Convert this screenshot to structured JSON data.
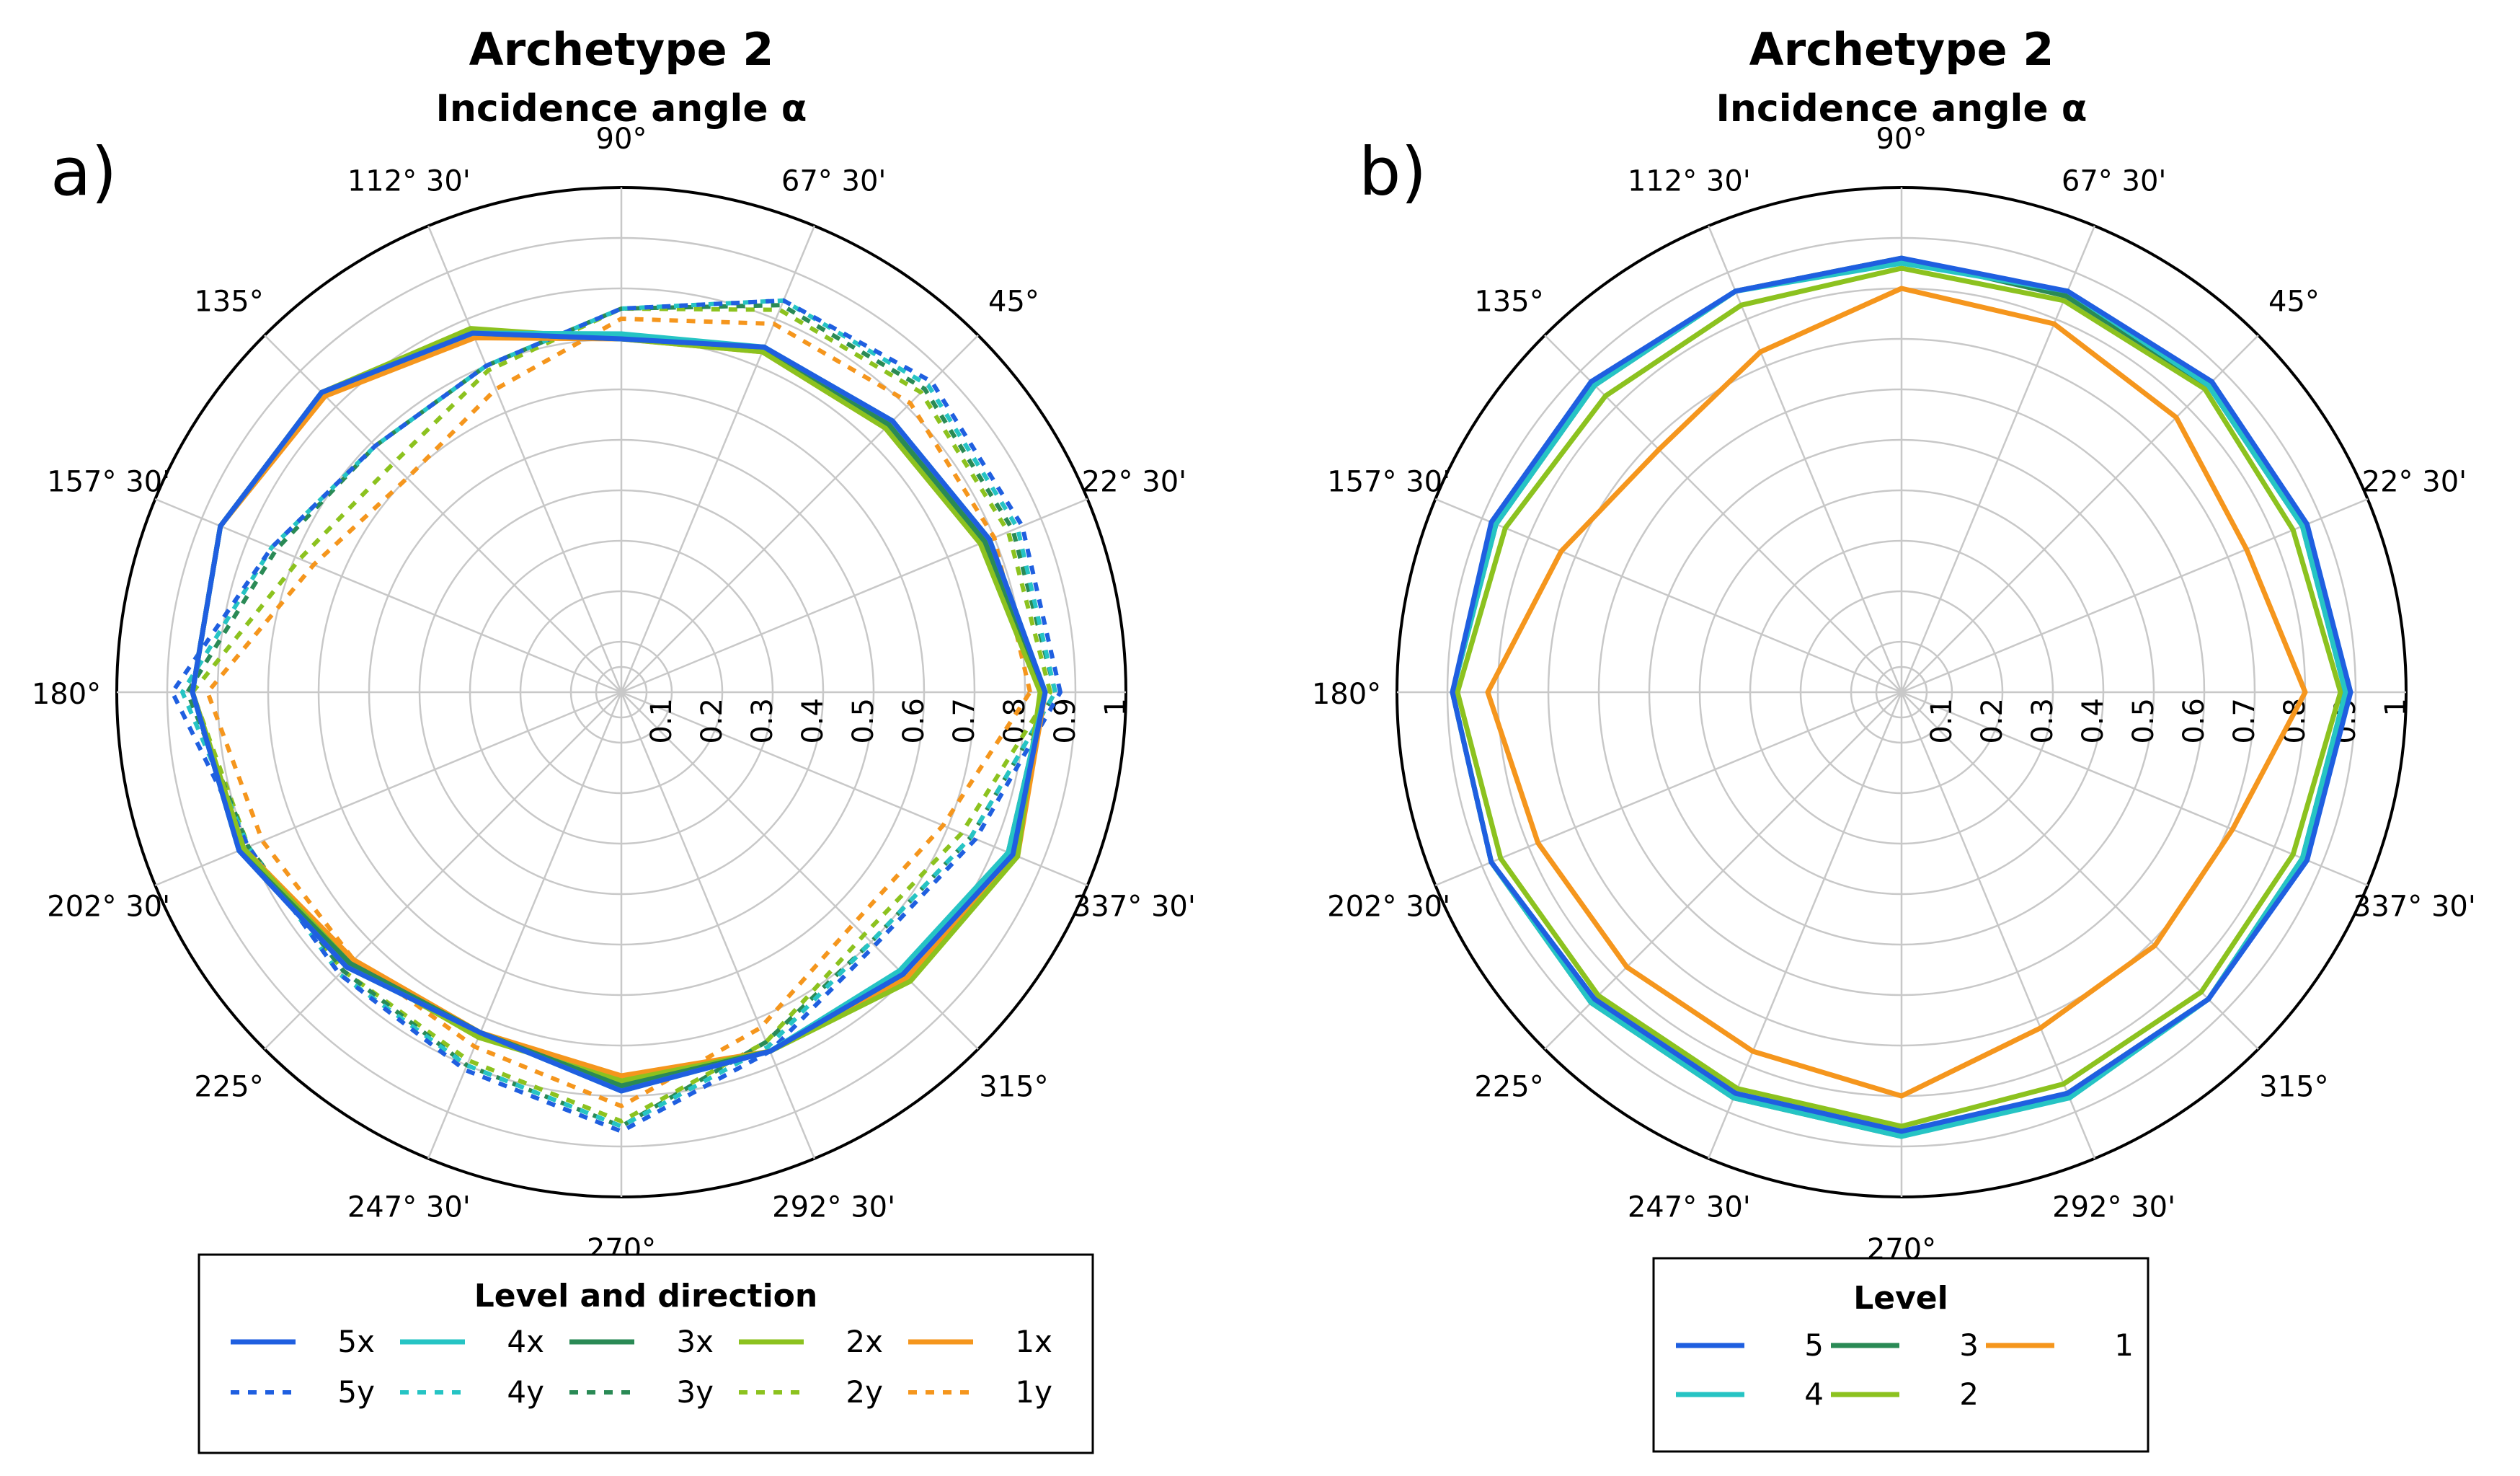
{
  "chart_data": [
    {
      "type": "polar_line",
      "panel_label": "a)",
      "title": "Archetype 2",
      "subtitle": "Incidence angle α",
      "radial_range": [
        0,
        1
      ],
      "radial_ticks": [
        "0.1",
        "0.2",
        "0.3",
        "0.4",
        "0.5",
        "0.6",
        "0.7",
        "0.8",
        "0.9",
        "1"
      ],
      "angle_ticks_deg": [
        0,
        22.5,
        45,
        67.5,
        90,
        112.5,
        135,
        157.5,
        180,
        202.5,
        225,
        247.5,
        270,
        292.5,
        315,
        337.5
      ],
      "angle_labels": [
        "",
        "22° 30'",
        "45°",
        "67° 30'",
        "90°",
        "112° 30'",
        "135°",
        "157° 30'",
        "180°",
        "202° 30'",
        "225°",
        "247° 30'",
        "270°",
        "292° 30'",
        "315°",
        "337° 30'"
      ],
      "legend_title": "Level and direction",
      "legend_position": "bottom",
      "angles_deg": [
        0,
        22.5,
        45,
        67.5,
        90,
        112.5,
        135,
        157.5,
        180,
        202.5,
        225,
        247.5,
        270,
        292.5,
        315,
        337.5
      ],
      "series": [
        {
          "name": "5x",
          "color": "#1f5fe0",
          "dash": "solid",
          "values": [
            0.84,
            0.79,
            0.76,
            0.74,
            0.7,
            0.77,
            0.84,
            0.86,
            0.85,
            0.82,
            0.77,
            0.73,
            0.79,
            0.77,
            0.79,
            0.84
          ]
        },
        {
          "name": "4x",
          "color": "#26c4c4",
          "dash": "solid",
          "values": [
            0.84,
            0.79,
            0.76,
            0.74,
            0.71,
            0.77,
            0.84,
            0.86,
            0.85,
            0.82,
            0.77,
            0.73,
            0.79,
            0.77,
            0.78,
            0.83
          ]
        },
        {
          "name": "3x",
          "color": "#2a8a55",
          "dash": "solid",
          "values": [
            0.84,
            0.78,
            0.75,
            0.74,
            0.7,
            0.77,
            0.84,
            0.86,
            0.85,
            0.82,
            0.76,
            0.73,
            0.78,
            0.77,
            0.79,
            0.83
          ]
        },
        {
          "name": "2x",
          "color": "#8cc21f",
          "dash": "solid",
          "values": [
            0.83,
            0.77,
            0.74,
            0.73,
            0.7,
            0.78,
            0.84,
            0.86,
            0.85,
            0.81,
            0.76,
            0.74,
            0.77,
            0.77,
            0.81,
            0.85
          ]
        },
        {
          "name": "1x",
          "color": "#f5961d",
          "dash": "solid",
          "values": [
            0.84,
            0.77,
            0.74,
            0.73,
            0.7,
            0.76,
            0.83,
            0.86,
            0.85,
            0.81,
            0.75,
            0.73,
            0.76,
            0.77,
            0.8,
            0.85
          ]
        },
        {
          "name": "5y",
          "color": "#1f5fe0",
          "dash": "dashed",
          "values": [
            0.87,
            0.86,
            0.87,
            0.84,
            0.76,
            0.7,
            0.69,
            0.75,
            0.89,
            0.8,
            0.79,
            0.81,
            0.87,
            0.77,
            0.71,
            0.76
          ]
        },
        {
          "name": "4y",
          "color": "#26c4c4",
          "dash": "dashed",
          "values": [
            0.86,
            0.85,
            0.86,
            0.84,
            0.76,
            0.7,
            0.69,
            0.75,
            0.87,
            0.8,
            0.79,
            0.8,
            0.86,
            0.76,
            0.7,
            0.75
          ]
        },
        {
          "name": "3y",
          "color": "#2a8a55",
          "dash": "dashed",
          "values": [
            0.86,
            0.84,
            0.85,
            0.83,
            0.76,
            0.7,
            0.69,
            0.74,
            0.86,
            0.8,
            0.78,
            0.8,
            0.86,
            0.75,
            0.7,
            0.75
          ]
        },
        {
          "name": "2y",
          "color": "#8cc21f",
          "dash": "dashed",
          "values": [
            0.85,
            0.83,
            0.84,
            0.82,
            0.76,
            0.69,
            0.64,
            0.69,
            0.85,
            0.8,
            0.78,
            0.79,
            0.85,
            0.75,
            0.68,
            0.73
          ]
        },
        {
          "name": "1y",
          "color": "#f5961d",
          "dash": "dashed",
          "values": [
            0.81,
            0.8,
            0.81,
            0.79,
            0.74,
            0.65,
            0.6,
            0.66,
            0.82,
            0.77,
            0.75,
            0.76,
            0.82,
            0.72,
            0.65,
            0.69
          ]
        }
      ],
      "legend_order": [
        "5x",
        "4x",
        "3x",
        "2x",
        "1x",
        "5y",
        "4y",
        "3y",
        "2y",
        "1y"
      ]
    },
    {
      "type": "polar_line",
      "panel_label": "b)",
      "title": "Archetype 2",
      "subtitle": "Incidence angle α",
      "radial_range": [
        0,
        1
      ],
      "radial_ticks": [
        "0.1",
        "0.2",
        "0.3",
        "0.4",
        "0.5",
        "0.6",
        "0.7",
        "0.8",
        "0.9",
        "1"
      ],
      "angle_ticks_deg": [
        0,
        22.5,
        45,
        67.5,
        90,
        112.5,
        135,
        157.5,
        180,
        202.5,
        225,
        247.5,
        270,
        292.5,
        315,
        337.5
      ],
      "angle_labels": [
        "",
        "22° 30'",
        "45°",
        "67° 30'",
        "90°",
        "112° 30'",
        "135°",
        "157° 30'",
        "180°",
        "202° 30'",
        "225°",
        "247° 30'",
        "270°",
        "292° 30'",
        "315°",
        "337° 30'"
      ],
      "legend_title": "Level",
      "legend_position": "bottom",
      "angles_deg": [
        0,
        22.5,
        45,
        67.5,
        90,
        112.5,
        135,
        157.5,
        180,
        202.5,
        225,
        247.5,
        270,
        292.5,
        315,
        337.5
      ],
      "series": [
        {
          "name": "5",
          "color": "#1f5fe0",
          "dash": "solid",
          "values": [
            0.89,
            0.87,
            0.87,
            0.86,
            0.86,
            0.86,
            0.87,
            0.88,
            0.89,
            0.88,
            0.86,
            0.86,
            0.87,
            0.86,
            0.86,
            0.87
          ]
        },
        {
          "name": "4",
          "color": "#26c4c4",
          "dash": "solid",
          "values": [
            0.88,
            0.86,
            0.86,
            0.86,
            0.85,
            0.86,
            0.86,
            0.87,
            0.89,
            0.88,
            0.87,
            0.87,
            0.88,
            0.87,
            0.86,
            0.86
          ]
        },
        {
          "name": "3",
          "color": "#2a8a55",
          "dash": "solid",
          "values": [
            0.88,
            0.86,
            0.86,
            0.85,
            0.86,
            0.86,
            0.86,
            0.87,
            0.89,
            0.88,
            0.87,
            0.87,
            0.88,
            0.86,
            0.86,
            0.86
          ]
        },
        {
          "name": "2",
          "color": "#8cc21f",
          "dash": "solid",
          "values": [
            0.87,
            0.84,
            0.85,
            0.84,
            0.84,
            0.83,
            0.83,
            0.85,
            0.88,
            0.86,
            0.85,
            0.85,
            0.86,
            0.84,
            0.84,
            0.84
          ]
        },
        {
          "name": "1",
          "color": "#f5961d",
          "dash": "solid",
          "values": [
            0.8,
            0.74,
            0.77,
            0.79,
            0.8,
            0.73,
            0.68,
            0.73,
            0.82,
            0.78,
            0.77,
            0.77,
            0.8,
            0.72,
            0.71,
            0.71
          ]
        }
      ],
      "legend_order": [
        "5",
        "3",
        "1",
        "4",
        "2"
      ]
    }
  ]
}
